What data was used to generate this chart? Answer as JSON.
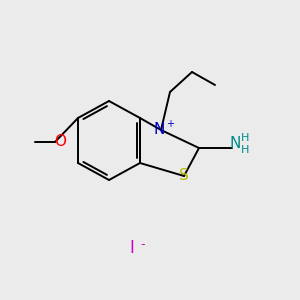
{
  "background_color": "#ebebeb",
  "bond_color": "#000000",
  "figsize": [
    3.0,
    3.0
  ],
  "dpi": 100,
  "lw": 1.4,
  "atoms": {
    "S": {
      "color": "#b8b800"
    },
    "N": {
      "color": "#0000cc"
    },
    "NH2": {
      "color": "#008b8b"
    },
    "O": {
      "color": "#ff0000"
    },
    "I": {
      "color": "#cc00cc"
    }
  }
}
